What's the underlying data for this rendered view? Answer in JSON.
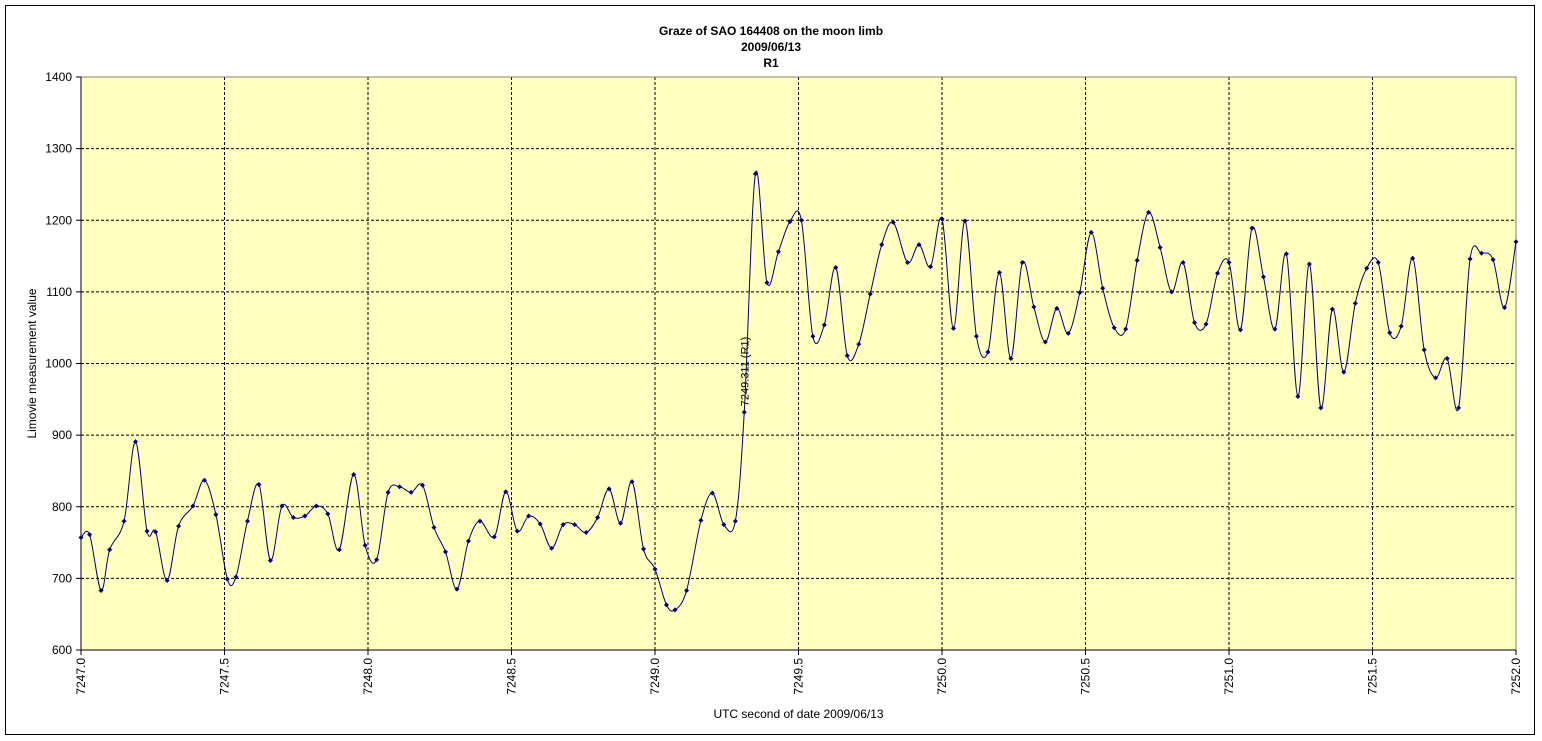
{
  "chart_data": {
    "type": "line",
    "title_lines": [
      "Graze of SAO 164408 on the moon limb",
      "2009/06/13",
      "R1"
    ],
    "xlabel": "UTC second of date 2009/06/13",
    "ylabel": "Limovie measurement value",
    "xlim": [
      7247.0,
      7252.0
    ],
    "ylim": [
      600,
      1400
    ],
    "x_ticks": [
      7247.0,
      7247.5,
      7248.0,
      7248.5,
      7249.0,
      7249.5,
      7250.0,
      7250.5,
      7251.0,
      7251.5,
      7252.0
    ],
    "x_tick_labels": [
      "7247.0",
      "7247.5",
      "7248.0",
      "7248.5",
      "7249.0",
      "7249.5",
      "7250.0",
      "7250.5",
      "7251.0",
      "7251.5",
      "7252.0"
    ],
    "y_ticks": [
      600,
      700,
      800,
      900,
      1000,
      1100,
      1200,
      1300,
      1400
    ],
    "y_tick_labels": [
      "600",
      "700",
      "800",
      "900",
      "1000",
      "1100",
      "1200",
      "1300",
      "1400"
    ],
    "grid": true,
    "plot_background": "#ffffc0",
    "line_color": "#000080",
    "annotation": {
      "x": 7249.311,
      "y": 932,
      "text": "7249.311 (R1)"
    },
    "points": [
      [
        7247.0,
        757
      ],
      [
        7247.03,
        761
      ],
      [
        7247.07,
        683
      ],
      [
        7247.1,
        740
      ],
      [
        7247.15,
        780
      ],
      [
        7247.19,
        891
      ],
      [
        7247.23,
        766
      ],
      [
        7247.26,
        765
      ],
      [
        7247.3,
        697
      ],
      [
        7247.34,
        773
      ],
      [
        7247.39,
        801
      ],
      [
        7247.43,
        837
      ],
      [
        7247.47,
        789
      ],
      [
        7247.51,
        699
      ],
      [
        7247.54,
        702
      ],
      [
        7247.58,
        780
      ],
      [
        7247.62,
        831
      ],
      [
        7247.66,
        725
      ],
      [
        7247.7,
        801
      ],
      [
        7247.74,
        785
      ],
      [
        7247.78,
        787
      ],
      [
        7247.82,
        801
      ],
      [
        7247.86,
        790
      ],
      [
        7247.9,
        740
      ],
      [
        7247.95,
        845
      ],
      [
        7247.99,
        746
      ],
      [
        7248.03,
        726
      ],
      [
        7248.07,
        820
      ],
      [
        7248.11,
        828
      ],
      [
        7248.15,
        820
      ],
      [
        7248.19,
        830
      ],
      [
        7248.23,
        771
      ],
      [
        7248.27,
        737
      ],
      [
        7248.31,
        685
      ],
      [
        7248.35,
        752
      ],
      [
        7248.39,
        780
      ],
      [
        7248.44,
        758
      ],
      [
        7248.48,
        821
      ],
      [
        7248.52,
        766
      ],
      [
        7248.56,
        787
      ],
      [
        7248.6,
        776
      ],
      [
        7248.64,
        742
      ],
      [
        7248.68,
        775
      ],
      [
        7248.72,
        775
      ],
      [
        7248.76,
        764
      ],
      [
        7248.8,
        785
      ],
      [
        7248.84,
        825
      ],
      [
        7248.88,
        777
      ],
      [
        7248.92,
        835
      ],
      [
        7248.96,
        741
      ],
      [
        7249.0,
        713
      ],
      [
        7249.04,
        663
      ],
      [
        7249.07,
        656
      ],
      [
        7249.11,
        683
      ],
      [
        7249.16,
        781
      ],
      [
        7249.2,
        819
      ],
      [
        7249.24,
        775
      ],
      [
        7249.28,
        780
      ],
      [
        7249.311,
        932
      ],
      [
        7249.35,
        1265
      ],
      [
        7249.39,
        1113
      ],
      [
        7249.43,
        1156
      ],
      [
        7249.47,
        1198
      ],
      [
        7249.51,
        1200
      ],
      [
        7249.55,
        1038
      ],
      [
        7249.59,
        1054
      ],
      [
        7249.63,
        1134
      ],
      [
        7249.67,
        1011
      ],
      [
        7249.71,
        1027
      ],
      [
        7249.75,
        1097
      ],
      [
        7249.79,
        1166
      ],
      [
        7249.83,
        1197
      ],
      [
        7249.88,
        1141
      ],
      [
        7249.92,
        1166
      ],
      [
        7249.96,
        1135
      ],
      [
        7250.0,
        1202
      ],
      [
        7250.04,
        1049
      ],
      [
        7250.08,
        1199
      ],
      [
        7250.12,
        1038
      ],
      [
        7250.16,
        1016
      ],
      [
        7250.2,
        1127
      ],
      [
        7250.24,
        1007
      ],
      [
        7250.28,
        1141
      ],
      [
        7250.32,
        1079
      ],
      [
        7250.36,
        1030
      ],
      [
        7250.4,
        1077
      ],
      [
        7250.44,
        1042
      ],
      [
        7250.48,
        1099
      ],
      [
        7250.52,
        1183
      ],
      [
        7250.56,
        1105
      ],
      [
        7250.6,
        1050
      ],
      [
        7250.64,
        1048
      ],
      [
        7250.68,
        1144
      ],
      [
        7250.72,
        1211
      ],
      [
        7250.76,
        1162
      ],
      [
        7250.8,
        1100
      ],
      [
        7250.84,
        1141
      ],
      [
        7250.88,
        1057
      ],
      [
        7250.92,
        1055
      ],
      [
        7250.96,
        1126
      ],
      [
        7251.0,
        1141
      ],
      [
        7251.04,
        1047
      ],
      [
        7251.08,
        1189
      ],
      [
        7251.12,
        1121
      ],
      [
        7251.16,
        1048
      ],
      [
        7251.2,
        1153
      ],
      [
        7251.24,
        954
      ],
      [
        7251.28,
        1139
      ],
      [
        7251.32,
        938
      ],
      [
        7251.36,
        1076
      ],
      [
        7251.4,
        988
      ],
      [
        7251.44,
        1084
      ],
      [
        7251.48,
        1133
      ],
      [
        7251.52,
        1141
      ],
      [
        7251.56,
        1043
      ],
      [
        7251.6,
        1052
      ],
      [
        7251.64,
        1147
      ],
      [
        7251.68,
        1019
      ],
      [
        7251.72,
        980
      ],
      [
        7251.76,
        1007
      ],
      [
        7251.8,
        938
      ],
      [
        7251.84,
        1146
      ],
      [
        7251.88,
        1154
      ],
      [
        7251.92,
        1145
      ],
      [
        7251.96,
        1078
      ],
      [
        7252.0,
        1170
      ]
    ]
  }
}
